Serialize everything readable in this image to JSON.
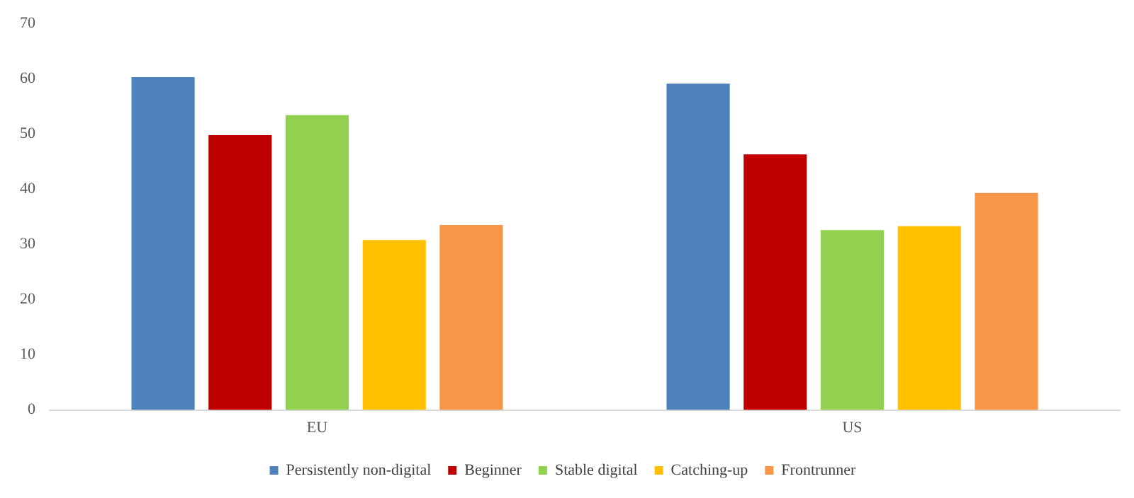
{
  "chart_data": {
    "type": "bar",
    "categories": [
      "EU",
      "US"
    ],
    "series": [
      {
        "name": "Persistently non-digital",
        "color": "#4f81bd",
        "values": [
          60.3,
          59.1
        ]
      },
      {
        "name": "Beginner",
        "color": "#c00000",
        "values": [
          49.8,
          46.3
        ]
      },
      {
        "name": "Stable digital",
        "color": "#92d050",
        "values": [
          53.4,
          32.6
        ]
      },
      {
        "name": "Catching-up",
        "color": "#ffc000",
        "values": [
          30.8,
          33.3
        ]
      },
      {
        "name": "Frontrunner",
        "color": "#f79646",
        "values": [
          33.5,
          39.3
        ]
      }
    ],
    "ylim": [
      0,
      70
    ],
    "yticks": [
      0,
      10,
      20,
      30,
      40,
      50,
      60,
      70
    ],
    "grid": false,
    "legend": "bottom"
  }
}
